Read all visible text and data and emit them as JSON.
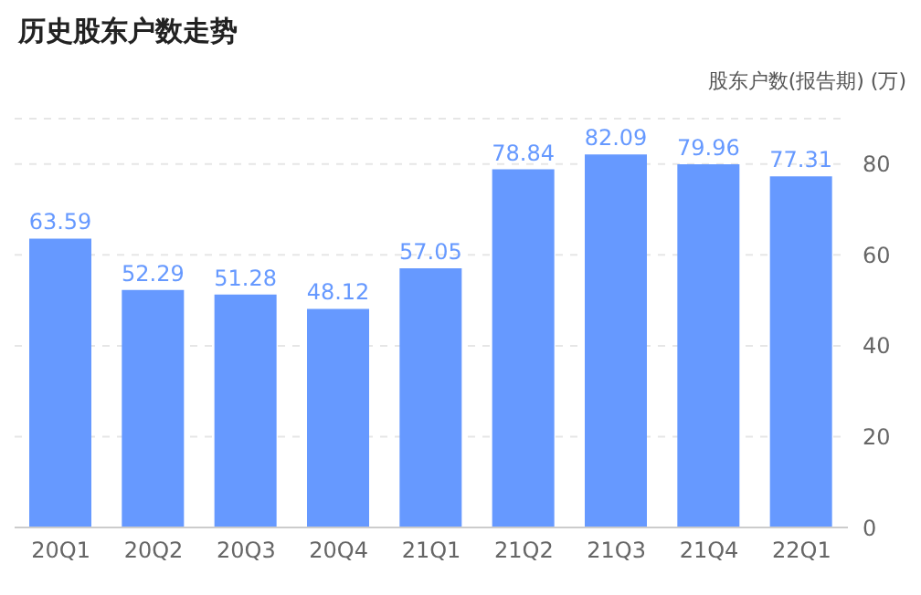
{
  "chart_data": {
    "type": "bar",
    "title": "历史股东户数走势",
    "ylabel": "股东户数(报告期) (万)",
    "categories": [
      "20Q1",
      "20Q2",
      "20Q3",
      "20Q4",
      "21Q1",
      "21Q2",
      "21Q3",
      "21Q4",
      "22Q1"
    ],
    "values": [
      63.59,
      52.29,
      51.28,
      48.12,
      57.05,
      78.84,
      82.09,
      79.96,
      77.31
    ],
    "color": "#6699ff",
    "ylim": [
      0,
      90
    ],
    "yticks": [
      0,
      20,
      40,
      60,
      80
    ],
    "grid": "y",
    "data_labels": true
  }
}
